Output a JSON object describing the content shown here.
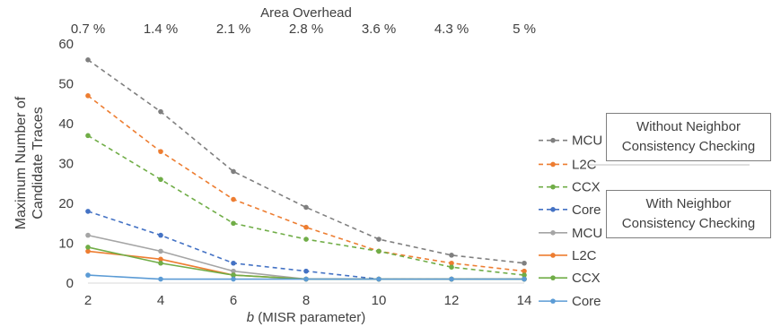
{
  "chart_data": {
    "type": "line",
    "x": [
      2,
      4,
      6,
      8,
      10,
      12,
      14
    ],
    "xlim": [
      2,
      14
    ],
    "ylim": [
      0,
      60
    ],
    "y_ticks": [
      0,
      10,
      20,
      30,
      40,
      50,
      60
    ],
    "x_ticks": [
      "2",
      "4",
      "6",
      "8",
      "10",
      "12",
      "14"
    ],
    "xlabel_italic": "b",
    "xlabel_rest": " (MISR parameter)",
    "ylabel_line1": "Maximum Number of",
    "ylabel_line2": "Candidate Traces",
    "top_axis_title": "Area Overhead",
    "top_ticks": [
      "0.7 %",
      "1.4 %",
      "2.1 %",
      "2.8 %",
      "3.6 %",
      "4.3 %",
      "5 %"
    ],
    "grid": false,
    "legend_placement": "right",
    "series": [
      {
        "name": "MCU",
        "group": "without",
        "dashed": true,
        "color": "#7f7f7f",
        "values": [
          56,
          43,
          28,
          19,
          11,
          7,
          5
        ]
      },
      {
        "name": "L2C",
        "group": "without",
        "dashed": true,
        "color": "#ed7d31",
        "values": [
          47,
          33,
          21,
          14,
          8,
          5,
          3
        ]
      },
      {
        "name": "CCX",
        "group": "without",
        "dashed": true,
        "color": "#70ad47",
        "values": [
          37,
          26,
          15,
          11,
          8,
          4,
          2
        ]
      },
      {
        "name": "Core",
        "group": "without",
        "dashed": true,
        "color": "#4472c4",
        "values": [
          18,
          12,
          5,
          3,
          1,
          1,
          1
        ]
      },
      {
        "name": "MCU",
        "group": "with",
        "dashed": false,
        "color": "#a5a5a5",
        "values": [
          12,
          8,
          3,
          1,
          1,
          1,
          1
        ]
      },
      {
        "name": "L2C",
        "group": "with",
        "dashed": false,
        "color": "#ed7d31",
        "values": [
          8,
          6,
          2,
          1,
          1,
          1,
          1
        ]
      },
      {
        "name": "CCX",
        "group": "with",
        "dashed": false,
        "color": "#70ad47",
        "values": [
          9,
          5,
          2,
          1,
          1,
          1,
          1
        ]
      },
      {
        "name": "Core",
        "group": "with",
        "dashed": false,
        "color": "#5b9bd5",
        "values": [
          2,
          1,
          1,
          1,
          1,
          1,
          1
        ]
      }
    ],
    "annotations": {
      "without_line1": "Without Neighbor",
      "without_line2": "Consistency Checking",
      "with_line1": "With Neighbor",
      "with_line2": "Consistency Checking"
    }
  }
}
